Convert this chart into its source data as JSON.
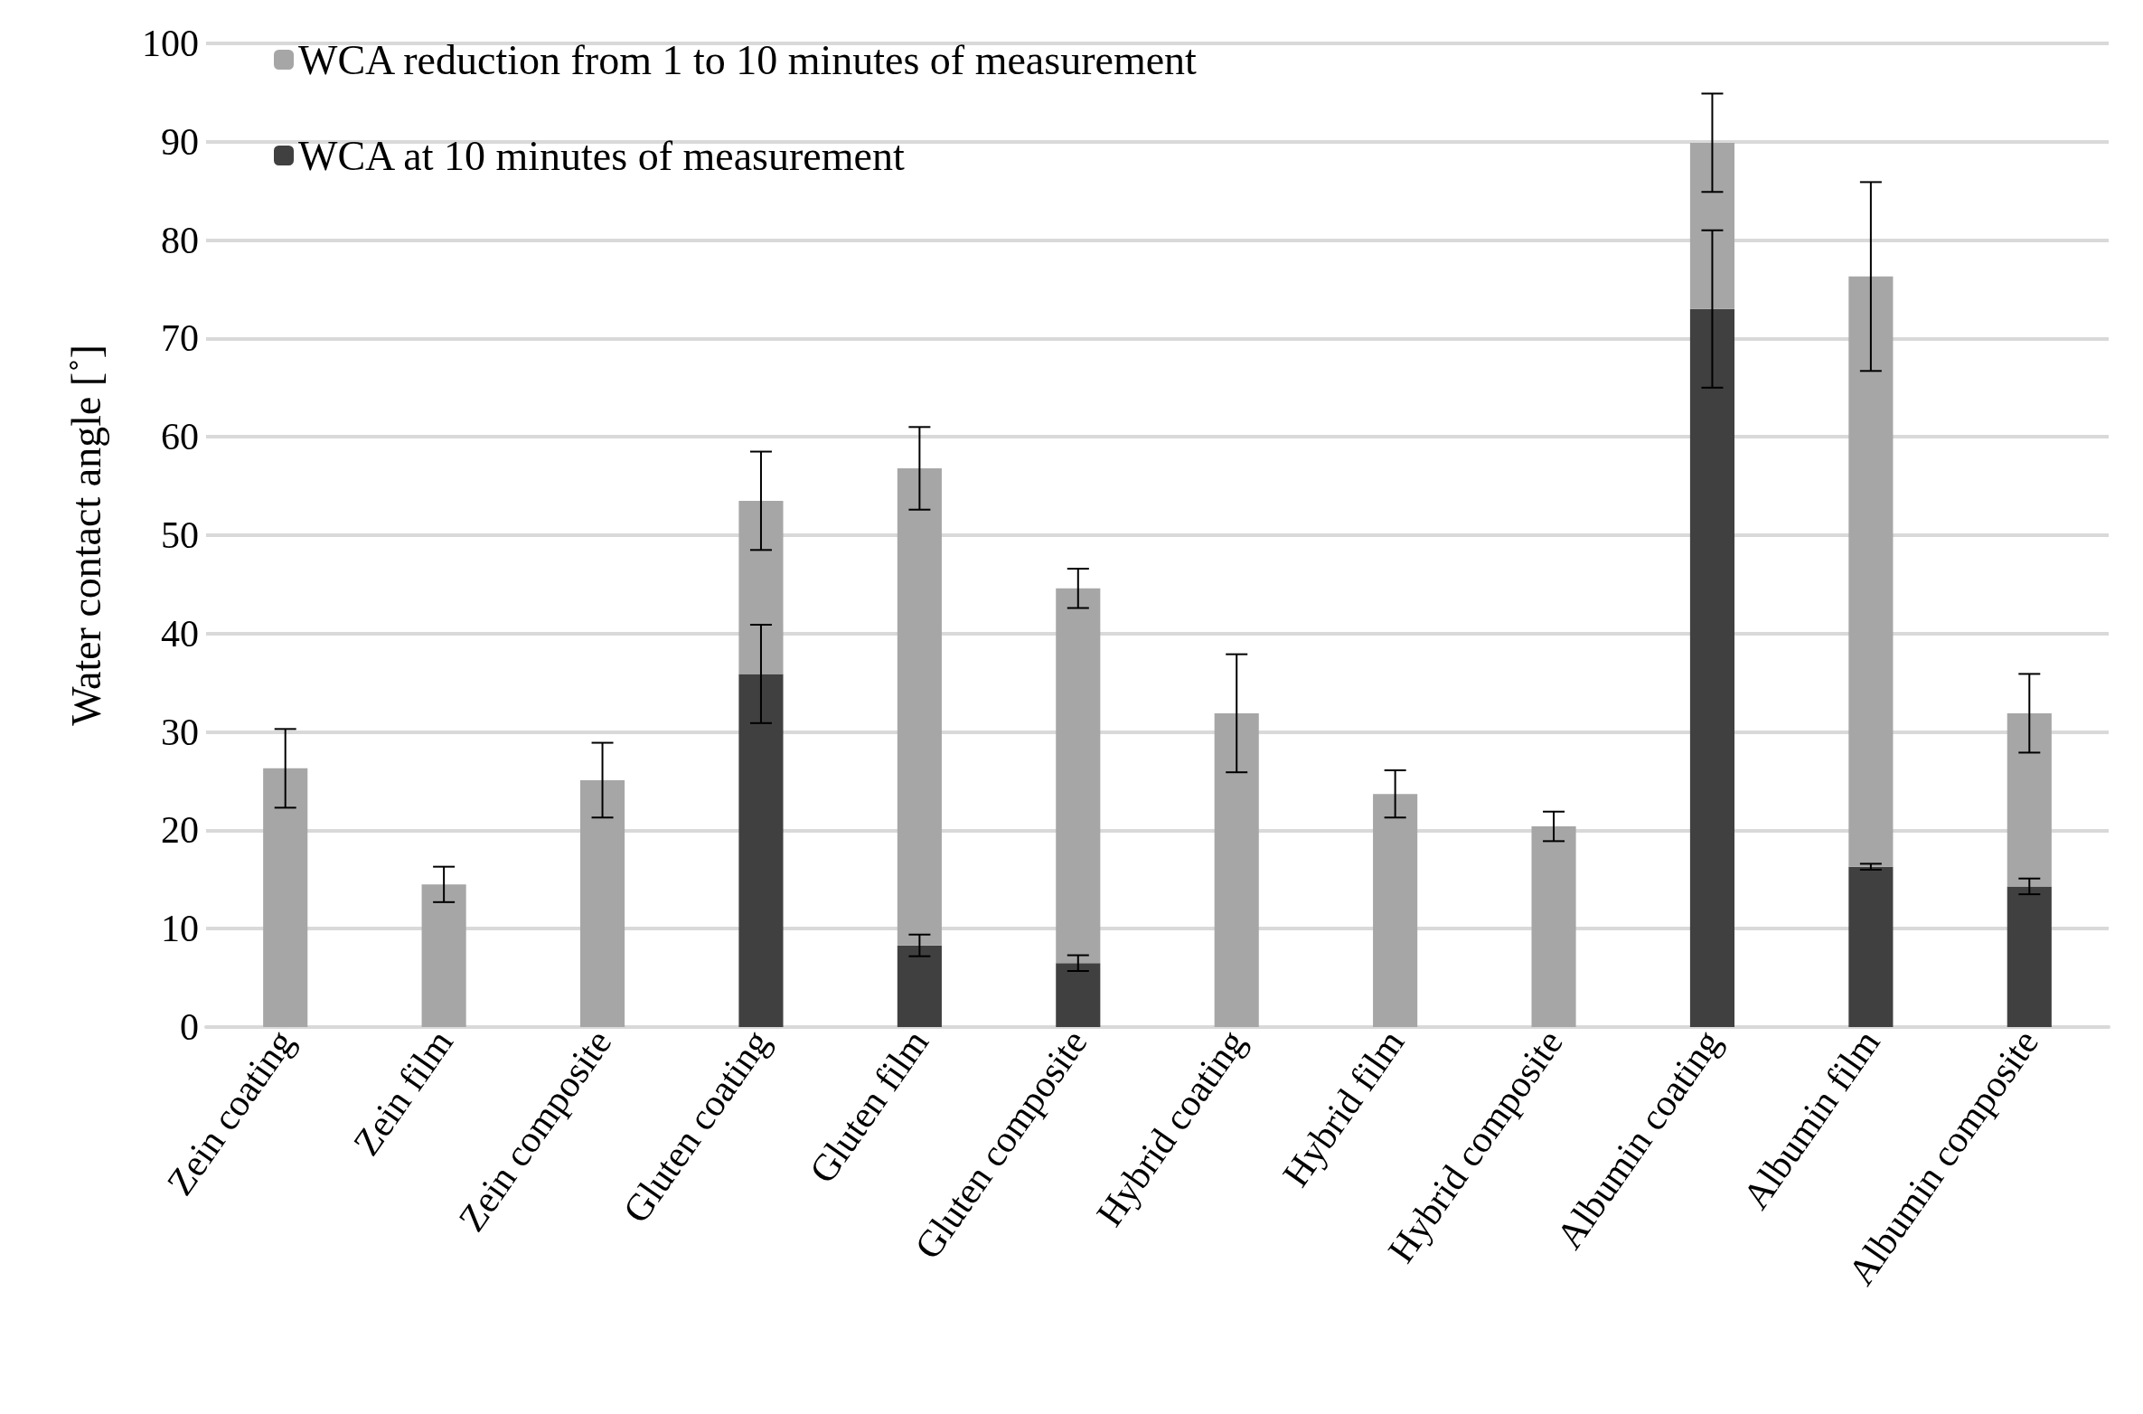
{
  "chart_data": {
    "type": "bar",
    "stacked": true,
    "ylabel": "Water contact angle [˚]",
    "categories": [
      "Zein coating",
      "Zein film",
      "Zein composite",
      "Gluten coating",
      "Gluten film",
      "Gluten composite",
      "Hybrid coating",
      "Hybrid film",
      "Hybrid composite",
      "Albumin coating",
      "Albumin film",
      "Albumin composite"
    ],
    "series": [
      {
        "name": "WCA at 10 minutes of measurement",
        "color": "#404040",
        "values": [
          null,
          null,
          null,
          35.9,
          8.3,
          6.5,
          null,
          null,
          null,
          73,
          16.3,
          14.3
        ],
        "errors": [
          null,
          null,
          null,
          5,
          1.1,
          0.8,
          null,
          null,
          null,
          8,
          0.3,
          0.8
        ]
      },
      {
        "name": "WCA reduction from 1 to 10 minutes of measurement",
        "color": "#a6a6a6",
        "values": [
          26.3,
          14.5,
          25.1,
          17.6,
          48.5,
          38.1,
          31.9,
          23.7,
          20.4,
          16.9,
          60,
          17.6
        ],
        "errors": [
          4,
          1.8,
          3.8,
          5,
          4.2,
          2,
          6,
          2.4,
          1.5,
          5,
          9.6,
          4
        ]
      }
    ],
    "ylim": [
      0,
      100
    ],
    "yticks": [
      0,
      10,
      20,
      30,
      40,
      50,
      60,
      70,
      80,
      90,
      100
    ],
    "grid": "y",
    "legend": "top left"
  }
}
